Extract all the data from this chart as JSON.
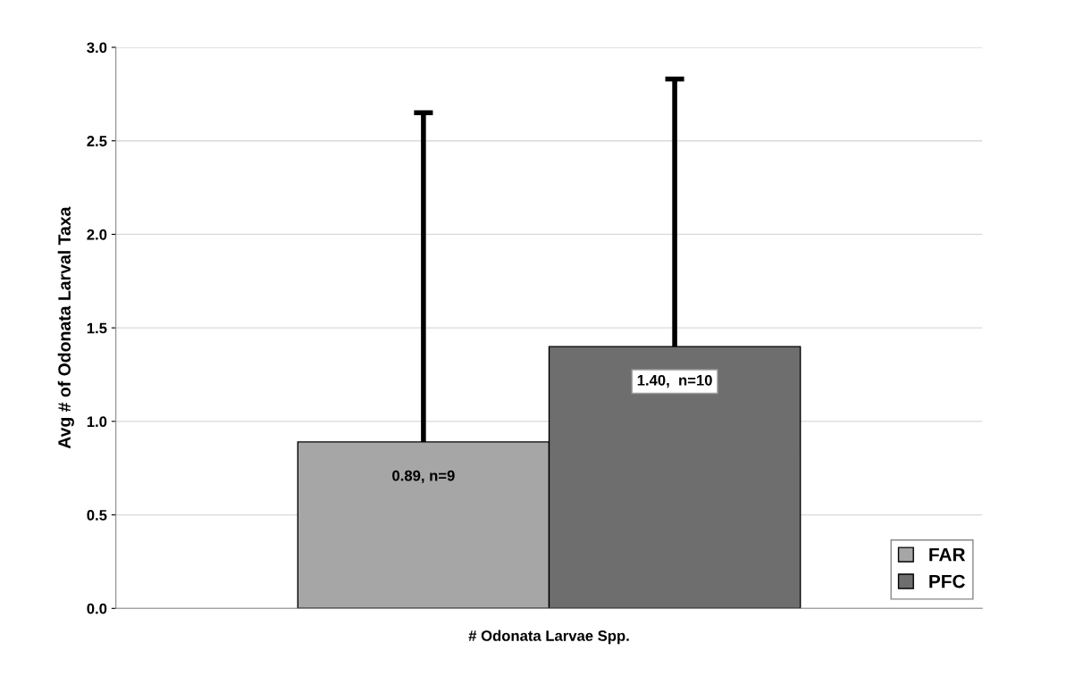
{
  "chart_data": {
    "type": "bar",
    "xlabel": "# Odonata Larvae Spp.",
    "ylabel": "Avg # of Odonata Larval Taxa",
    "categories": [
      null
    ],
    "series": [
      {
        "name": "FAR",
        "color": "#a6a6a6",
        "values": [
          0.89
        ],
        "errors": [
          [
            0.89,
            2.65
          ]
        ],
        "value_labels": [
          "0.89, n=9"
        ]
      },
      {
        "name": "PFC",
        "color": "#6e6e6e",
        "values": [
          1.4
        ],
        "errors": [
          [
            1.4,
            2.83
          ]
        ],
        "value_labels": [
          "1.40,  n=10"
        ]
      }
    ],
    "ylim": [
      0,
      3.0
    ],
    "yticks": [
      {
        "value": 0,
        "label": "0.0"
      },
      {
        "value": 0.5,
        "label": "0.5"
      },
      {
        "value": 1.0,
        "label": "1.0"
      },
      {
        "value": 1.5,
        "label": "1.5"
      },
      {
        "value": 2.0,
        "label": "2.0"
      },
      {
        "value": 2.5,
        "label": "2.5"
      },
      {
        "value": 3.0,
        "label": "3.0"
      }
    ],
    "grid": "y",
    "legend": "bottom right"
  }
}
